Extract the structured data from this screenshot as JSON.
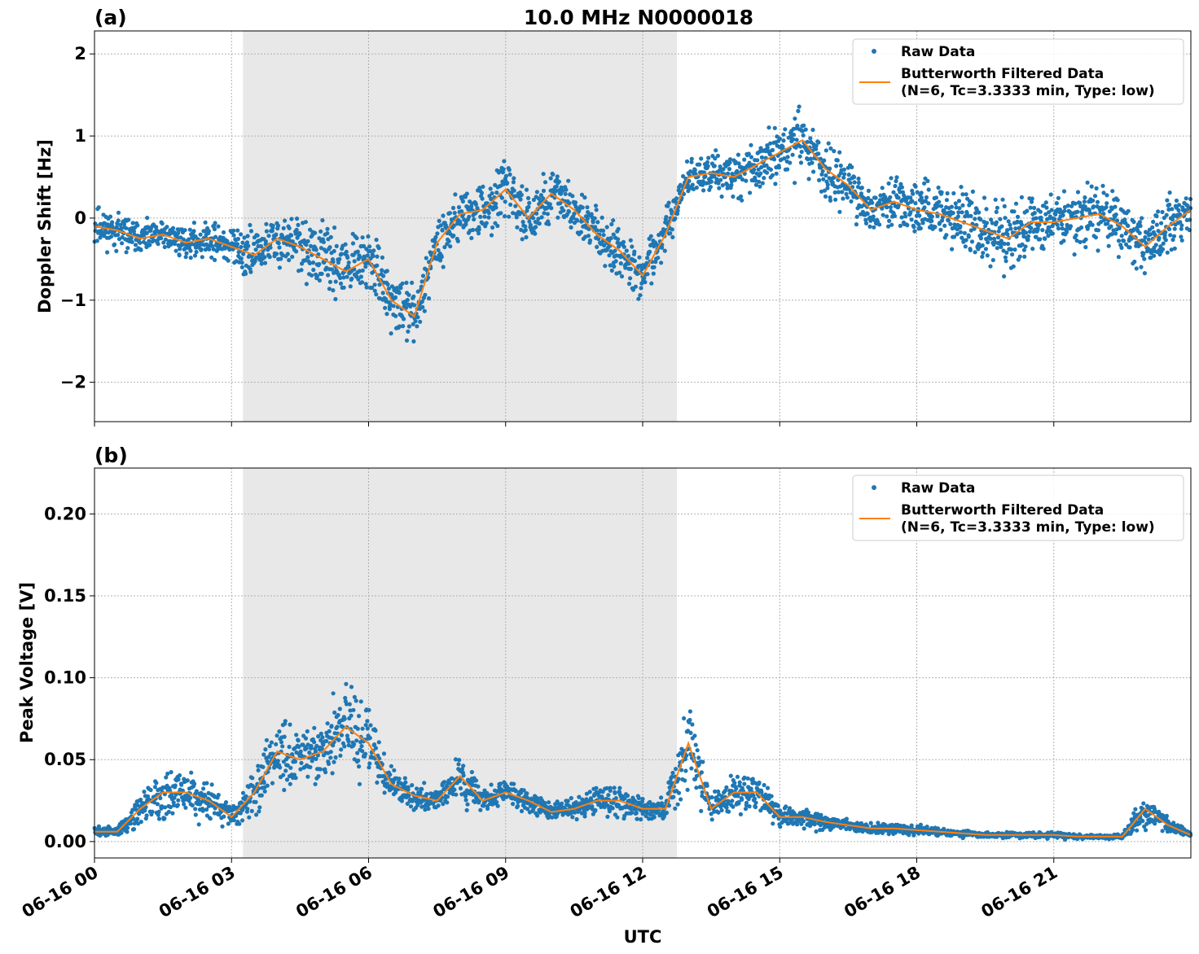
{
  "figure": {
    "title": "10.0 MHz N0000018",
    "xlabel": "UTC",
    "shade_x": [
      3.25,
      12.75
    ],
    "shade_color": "#e8e8e8",
    "raw_color": "#1f77b4",
    "filt_color": "#ff7f0e"
  },
  "chart_data": [
    {
      "type": "scatter",
      "panel_label": "(a)",
      "title": "10.0 MHz N0000018",
      "ylabel": "Doppler Shift [Hz]",
      "xlim": [
        0,
        24
      ],
      "ylim": [
        -2.48,
        2.28
      ],
      "x_ticks": [
        0,
        3,
        6,
        9,
        12,
        15,
        18,
        21
      ],
      "x_tick_labels": [
        "06-16 00",
        "06-16 03",
        "06-16 06",
        "06-16 09",
        "06-16 12",
        "06-16 15",
        "06-16 18",
        "06-16 21"
      ],
      "y_ticks": [
        -2,
        -1,
        0,
        1,
        2
      ],
      "y_tick_labels": [
        "−2",
        "−1",
        "0",
        "1",
        "2"
      ],
      "grid": true,
      "legend": {
        "placement": "top-right",
        "entries": [
          "Raw Data",
          "Butterworth Filtered Data",
          "(N=6, Tc=3.3333 min, Type: low)"
        ]
      },
      "series": [
        {
          "name": "Raw Data",
          "x": [
            0,
            0.5,
            1,
            1.5,
            2,
            2.5,
            3,
            3.5,
            4,
            4.5,
            5,
            5.5,
            6,
            6.5,
            7,
            7.5,
            8,
            8.5,
            9,
            9.5,
            10,
            10.5,
            11,
            11.5,
            12,
            12.5,
            13,
            13.5,
            14,
            14.5,
            15,
            15.5,
            16,
            16.5,
            17,
            17.5,
            18,
            18.5,
            19,
            19.5,
            20,
            20.5,
            21,
            21.5,
            22,
            22.5,
            23,
            23.5,
            24
          ],
          "center": [
            -0.1,
            -0.15,
            -0.25,
            -0.2,
            -0.3,
            -0.25,
            -0.35,
            -0.45,
            -0.25,
            -0.35,
            -0.5,
            -0.65,
            -0.5,
            -1.0,
            -1.2,
            -0.3,
            0.05,
            0.1,
            0.35,
            0.0,
            0.3,
            0.1,
            -0.2,
            -0.4,
            -0.7,
            -0.2,
            0.5,
            0.55,
            0.5,
            0.65,
            0.8,
            0.95,
            0.6,
            0.4,
            0.1,
            0.2,
            0.1,
            0.05,
            -0.05,
            -0.15,
            -0.25,
            -0.05,
            -0.05,
            0.0,
            0.05,
            -0.1,
            -0.35,
            -0.1,
            0.1
          ],
          "spread": [
            0.35,
            0.3,
            0.25,
            0.25,
            0.25,
            0.3,
            0.35,
            0.5,
            0.45,
            0.5,
            0.55,
            0.55,
            0.5,
            0.5,
            0.45,
            0.45,
            0.45,
            0.45,
            0.45,
            0.45,
            0.45,
            0.45,
            0.45,
            0.45,
            0.4,
            0.4,
            0.3,
            0.35,
            0.4,
            0.45,
            0.5,
            0.55,
            0.5,
            0.45,
            0.4,
            0.45,
            0.45,
            0.5,
            0.55,
            0.6,
            0.6,
            0.5,
            0.5,
            0.5,
            0.5,
            0.5,
            0.5,
            0.45,
            0.4
          ]
        },
        {
          "name": "Butterworth Filtered Data",
          "x": [
            0,
            0.5,
            1,
            1.5,
            2,
            2.5,
            3,
            3.5,
            4,
            4.5,
            5,
            5.5,
            6,
            6.5,
            7,
            7.5,
            8,
            8.5,
            9,
            9.5,
            10,
            10.5,
            11,
            11.5,
            12,
            12.5,
            13,
            13.5,
            14,
            14.5,
            15,
            15.5,
            16,
            16.5,
            17,
            17.5,
            18,
            18.5,
            19,
            19.5,
            20,
            20.5,
            21,
            21.5,
            22,
            22.5,
            23,
            23.5,
            24
          ],
          "y": [
            -0.1,
            -0.15,
            -0.25,
            -0.2,
            -0.3,
            -0.25,
            -0.35,
            -0.45,
            -0.25,
            -0.35,
            -0.5,
            -0.65,
            -0.5,
            -1.0,
            -1.2,
            -0.3,
            0.05,
            0.1,
            0.35,
            0.0,
            0.3,
            0.1,
            -0.2,
            -0.4,
            -0.7,
            -0.2,
            0.5,
            0.55,
            0.5,
            0.65,
            0.8,
            0.95,
            0.6,
            0.4,
            0.1,
            0.2,
            0.1,
            0.05,
            -0.05,
            -0.15,
            -0.25,
            -0.05,
            -0.05,
            0.0,
            0.05,
            -0.1,
            -0.35,
            -0.1,
            0.1
          ]
        }
      ]
    },
    {
      "type": "scatter",
      "panel_label": "(b)",
      "ylabel": "Peak Voltage [V]",
      "xlabel": "UTC",
      "xlim": [
        0,
        24
      ],
      "ylim": [
        -0.01,
        0.228
      ],
      "x_ticks": [
        0,
        3,
        6,
        9,
        12,
        15,
        18,
        21
      ],
      "x_tick_labels": [
        "06-16 00",
        "06-16 03",
        "06-16 06",
        "06-16 09",
        "06-16 12",
        "06-16 15",
        "06-16 18",
        "06-16 21"
      ],
      "y_ticks": [
        0.0,
        0.05,
        0.1,
        0.15,
        0.2
      ],
      "y_tick_labels": [
        "0.00",
        "0.05",
        "0.10",
        "0.15",
        "0.20"
      ],
      "grid": true,
      "legend": {
        "placement": "top-right",
        "entries": [
          "Raw Data",
          "Butterworth Filtered Data",
          "(N=6, Tc=3.3333 min, Type: low)"
        ]
      },
      "series": [
        {
          "name": "Raw Data",
          "x": [
            0,
            0.5,
            1,
            1.5,
            2,
            2.5,
            3,
            3.5,
            4,
            4.5,
            5,
            5.5,
            6,
            6.5,
            7,
            7.5,
            8,
            8.5,
            9,
            9.5,
            10,
            10.5,
            11,
            11.5,
            12,
            12.5,
            13,
            13.5,
            14,
            14.5,
            15,
            15.5,
            16,
            16.5,
            17,
            17.5,
            18,
            18.5,
            19,
            19.5,
            20,
            20.5,
            21,
            21.5,
            22,
            22.5,
            23,
            23.5,
            24
          ],
          "center": [
            0.006,
            0.006,
            0.02,
            0.03,
            0.03,
            0.025,
            0.015,
            0.03,
            0.055,
            0.05,
            0.055,
            0.07,
            0.06,
            0.035,
            0.028,
            0.025,
            0.04,
            0.025,
            0.03,
            0.025,
            0.018,
            0.02,
            0.025,
            0.025,
            0.02,
            0.02,
            0.06,
            0.02,
            0.03,
            0.03,
            0.015,
            0.015,
            0.012,
            0.01,
            0.008,
            0.008,
            0.007,
            0.006,
            0.005,
            0.004,
            0.004,
            0.004,
            0.004,
            0.003,
            0.003,
            0.003,
            0.02,
            0.01,
            0.004
          ],
          "spread": [
            0.004,
            0.005,
            0.012,
            0.02,
            0.02,
            0.015,
            0.01,
            0.02,
            0.03,
            0.025,
            0.03,
            0.04,
            0.03,
            0.015,
            0.01,
            0.01,
            0.02,
            0.01,
            0.012,
            0.01,
            0.008,
            0.01,
            0.012,
            0.012,
            0.01,
            0.01,
            0.04,
            0.012,
            0.018,
            0.015,
            0.01,
            0.01,
            0.006,
            0.005,
            0.004,
            0.005,
            0.004,
            0.003,
            0.003,
            0.002,
            0.003,
            0.002,
            0.003,
            0.002,
            0.002,
            0.002,
            0.015,
            0.006,
            0.002
          ]
        },
        {
          "name": "Butterworth Filtered Data",
          "x": [
            0,
            0.5,
            1,
            1.5,
            2,
            2.5,
            3,
            3.5,
            4,
            4.5,
            5,
            5.5,
            6,
            6.5,
            7,
            7.5,
            8,
            8.5,
            9,
            9.5,
            10,
            10.5,
            11,
            11.5,
            12,
            12.5,
            13,
            13.5,
            14,
            14.5,
            15,
            15.5,
            16,
            16.5,
            17,
            17.5,
            18,
            18.5,
            19,
            19.5,
            20,
            20.5,
            21,
            21.5,
            22,
            22.5,
            23,
            23.5,
            24
          ],
          "y": [
            0.006,
            0.006,
            0.02,
            0.03,
            0.03,
            0.025,
            0.015,
            0.03,
            0.055,
            0.05,
            0.055,
            0.07,
            0.06,
            0.035,
            0.028,
            0.025,
            0.04,
            0.025,
            0.03,
            0.025,
            0.018,
            0.02,
            0.025,
            0.025,
            0.02,
            0.02,
            0.06,
            0.02,
            0.03,
            0.03,
            0.015,
            0.015,
            0.012,
            0.01,
            0.008,
            0.008,
            0.007,
            0.006,
            0.005,
            0.004,
            0.004,
            0.004,
            0.004,
            0.003,
            0.003,
            0.003,
            0.02,
            0.01,
            0.004
          ]
        }
      ]
    }
  ]
}
